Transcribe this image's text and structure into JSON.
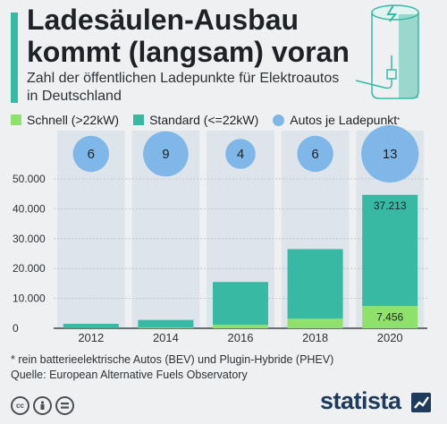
{
  "header": {
    "title": "Ladesäulen-Ausbau kommt (langsam) voran",
    "subtitle": "Zahl der öffentlichen Ladepunkte für Elektroautos in Deutschland"
  },
  "legend": {
    "fast": "Schnell (>22kW)",
    "standard": "Standard (<=22kW)",
    "cars": "Autos je Ladepunkt",
    "cars_marker": "*"
  },
  "colors": {
    "fast": "#8ee26b",
    "standard": "#37b9a4",
    "bubble": "#7fb8e8",
    "column": "#dde4ea",
    "accent": "#37b9a4"
  },
  "chart_data": {
    "type": "bar",
    "stacked": true,
    "categories": [
      "2012",
      "2014",
      "2016",
      "2018",
      "2020"
    ],
    "series": [
      {
        "name": "Schnell (>22kW)",
        "values": [
          100,
          250,
          1200,
          3200,
          7456
        ]
      },
      {
        "name": "Standard (<=22kW)",
        "values": [
          1400,
          2550,
          14300,
          23300,
          37213
        ]
      }
    ],
    "cars_per_charging_point": [
      6,
      9,
      4,
      6,
      13
    ],
    "data_labels": {
      "standard_2020": "37.213",
      "fast_2020": "7.456"
    },
    "yticks": [
      "0",
      "10.000",
      "20.000",
      "30.000",
      "40.000",
      "50.000"
    ],
    "ylim": [
      0,
      50000
    ],
    "grid": true,
    "legend_position": "top-left"
  },
  "footnote": {
    "line1": "* rein batterieelektrische Autos (BEV) und Plugin-Hybride (PHEV)",
    "line2": "Quelle: European Alternative Fuels Observatory"
  },
  "brand": {
    "name": "statista",
    "icons": [
      "cc-icon",
      "by-icon",
      "nd-icon"
    ]
  }
}
